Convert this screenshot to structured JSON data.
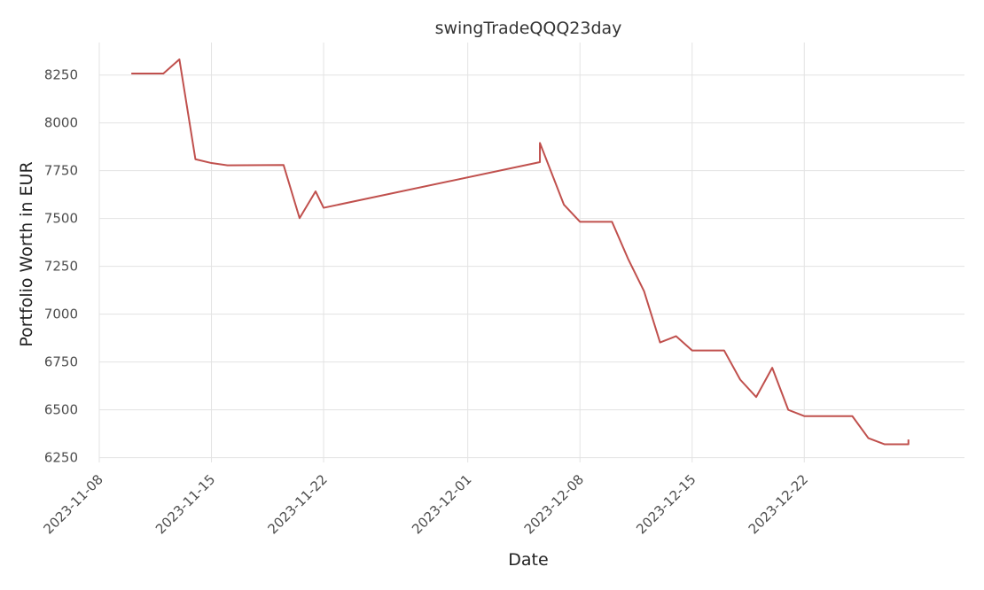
{
  "chart_data": {
    "type": "line",
    "title": "swingTradeQQQ23day",
    "xlabel": "Date",
    "ylabel": "Portfolio Worth in EUR",
    "xlim": [
      "2023-11-08",
      "2024-01-01"
    ],
    "ylim": [
      6225,
      8420
    ],
    "x_ticks": [
      "2023-11-08",
      "2023-11-15",
      "2023-11-22",
      "2023-12-01",
      "2023-12-08",
      "2023-12-15",
      "2023-12-22"
    ],
    "y_ticks": [
      6250,
      6500,
      6750,
      7000,
      7250,
      7500,
      7750,
      8000,
      8250
    ],
    "grid": true,
    "line_color": "#c0504d",
    "series": [
      {
        "points": [
          [
            "2023-11-10T00:00",
            8258
          ],
          [
            "2023-11-12T00:00",
            8258
          ],
          [
            "2023-11-13T00:00",
            8332
          ],
          [
            "2023-11-14T00:00",
            7810
          ],
          [
            "2023-11-15T00:00",
            7790
          ],
          [
            "2023-11-16T00:00",
            7778
          ],
          [
            "2023-11-19T12:00",
            7780
          ],
          [
            "2023-11-20T12:00",
            7502
          ],
          [
            "2023-11-21T12:00",
            7642
          ],
          [
            "2023-11-22T00:00",
            7556
          ],
          [
            "2023-12-05T12:00",
            7795
          ],
          [
            "2023-12-05T12:00",
            7840
          ],
          [
            "2023-12-05T12:00",
            7895
          ],
          [
            "2023-12-07T00:00",
            7572
          ],
          [
            "2023-12-08T00:00",
            7483
          ],
          [
            "2023-12-10T00:00",
            7483
          ],
          [
            "2023-12-11T00:00",
            7290
          ],
          [
            "2023-12-12T00:00",
            7120
          ],
          [
            "2023-12-13T00:00",
            6852
          ],
          [
            "2023-12-14T00:00",
            6885
          ],
          [
            "2023-12-15T00:00",
            6810
          ],
          [
            "2023-12-17T00:00",
            6810
          ],
          [
            "2023-12-18T00:00",
            6658
          ],
          [
            "2023-12-19T00:00",
            6567
          ],
          [
            "2023-12-20T00:00",
            6720
          ],
          [
            "2023-12-21T00:00",
            6500
          ],
          [
            "2023-12-22T00:00",
            6467
          ],
          [
            "2023-12-25T00:00",
            6467
          ],
          [
            "2023-12-26T00:00",
            6352
          ],
          [
            "2023-12-27T00:00",
            6320
          ],
          [
            "2023-12-28T12:00",
            6320
          ],
          [
            "2023-12-28T12:00",
            6345
          ]
        ]
      }
    ]
  }
}
